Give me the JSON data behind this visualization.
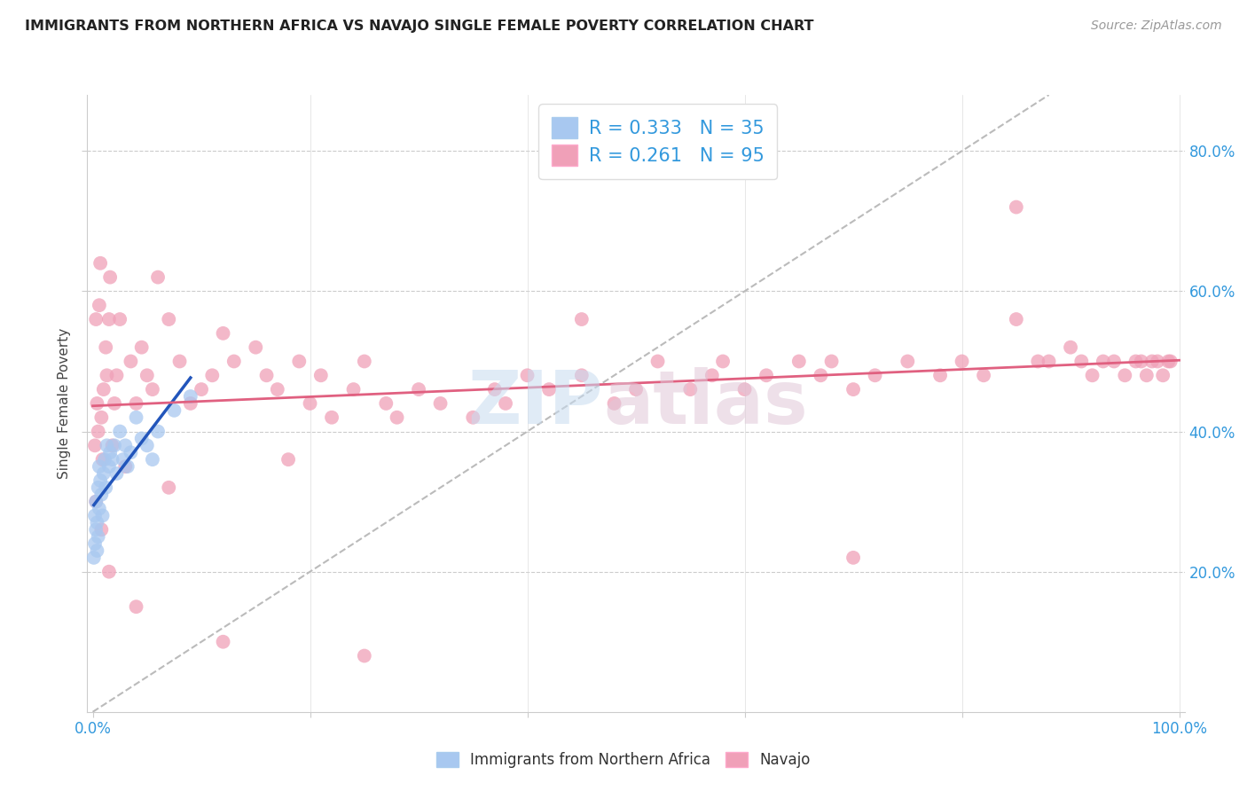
{
  "title": "IMMIGRANTS FROM NORTHERN AFRICA VS NAVAJO SINGLE FEMALE POVERTY CORRELATION CHART",
  "source": "Source: ZipAtlas.com",
  "ylabel": "Single Female Poverty",
  "legend_blue_label": "Immigrants from Northern Africa",
  "legend_pink_label": "Navajo",
  "R_blue": 0.333,
  "N_blue": 35,
  "R_pink": 0.261,
  "N_pink": 95,
  "blue_color": "#A8C8F0",
  "pink_color": "#F0A0B8",
  "blue_line_color": "#2255BB",
  "pink_line_color": "#E06080",
  "diag_line_color": "#BBBBBB",
  "blue_points_x": [
    0.001,
    0.002,
    0.002,
    0.003,
    0.003,
    0.004,
    0.004,
    0.005,
    0.005,
    0.006,
    0.006,
    0.007,
    0.008,
    0.009,
    0.01,
    0.011,
    0.012,
    0.013,
    0.015,
    0.016,
    0.018,
    0.02,
    0.022,
    0.025,
    0.028,
    0.03,
    0.032,
    0.035,
    0.04,
    0.045,
    0.05,
    0.055,
    0.06,
    0.075,
    0.09
  ],
  "blue_points_y": [
    0.22,
    0.24,
    0.28,
    0.26,
    0.3,
    0.23,
    0.27,
    0.25,
    0.32,
    0.29,
    0.35,
    0.33,
    0.31,
    0.28,
    0.34,
    0.36,
    0.32,
    0.38,
    0.35,
    0.37,
    0.36,
    0.38,
    0.34,
    0.4,
    0.36,
    0.38,
    0.35,
    0.37,
    0.42,
    0.39,
    0.38,
    0.36,
    0.4,
    0.43,
    0.45
  ],
  "pink_points_x": [
    0.002,
    0.003,
    0.004,
    0.005,
    0.006,
    0.007,
    0.008,
    0.009,
    0.01,
    0.012,
    0.013,
    0.015,
    0.016,
    0.018,
    0.02,
    0.022,
    0.025,
    0.03,
    0.035,
    0.04,
    0.045,
    0.05,
    0.055,
    0.06,
    0.07,
    0.08,
    0.09,
    0.1,
    0.11,
    0.12,
    0.13,
    0.15,
    0.16,
    0.17,
    0.18,
    0.19,
    0.2,
    0.21,
    0.22,
    0.24,
    0.25,
    0.27,
    0.28,
    0.3,
    0.32,
    0.35,
    0.37,
    0.38,
    0.4,
    0.42,
    0.45,
    0.48,
    0.5,
    0.52,
    0.55,
    0.57,
    0.58,
    0.6,
    0.62,
    0.65,
    0.67,
    0.68,
    0.7,
    0.72,
    0.75,
    0.78,
    0.8,
    0.82,
    0.85,
    0.87,
    0.88,
    0.9,
    0.91,
    0.92,
    0.93,
    0.94,
    0.95,
    0.96,
    0.965,
    0.97,
    0.975,
    0.98,
    0.985,
    0.99,
    0.992,
    0.003,
    0.008,
    0.015,
    0.04,
    0.07,
    0.12,
    0.25,
    0.45,
    0.7,
    0.85
  ],
  "pink_points_y": [
    0.38,
    0.56,
    0.44,
    0.4,
    0.58,
    0.64,
    0.42,
    0.36,
    0.46,
    0.52,
    0.48,
    0.56,
    0.62,
    0.38,
    0.44,
    0.48,
    0.56,
    0.35,
    0.5,
    0.44,
    0.52,
    0.48,
    0.46,
    0.62,
    0.56,
    0.5,
    0.44,
    0.46,
    0.48,
    0.54,
    0.5,
    0.52,
    0.48,
    0.46,
    0.36,
    0.5,
    0.44,
    0.48,
    0.42,
    0.46,
    0.5,
    0.44,
    0.42,
    0.46,
    0.44,
    0.42,
    0.46,
    0.44,
    0.48,
    0.46,
    0.48,
    0.44,
    0.46,
    0.5,
    0.46,
    0.48,
    0.5,
    0.46,
    0.48,
    0.5,
    0.48,
    0.5,
    0.46,
    0.48,
    0.5,
    0.48,
    0.5,
    0.48,
    0.56,
    0.5,
    0.5,
    0.52,
    0.5,
    0.48,
    0.5,
    0.5,
    0.48,
    0.5,
    0.5,
    0.48,
    0.5,
    0.5,
    0.48,
    0.5,
    0.5,
    0.3,
    0.26,
    0.2,
    0.15,
    0.32,
    0.1,
    0.08,
    0.56,
    0.22,
    0.72
  ]
}
